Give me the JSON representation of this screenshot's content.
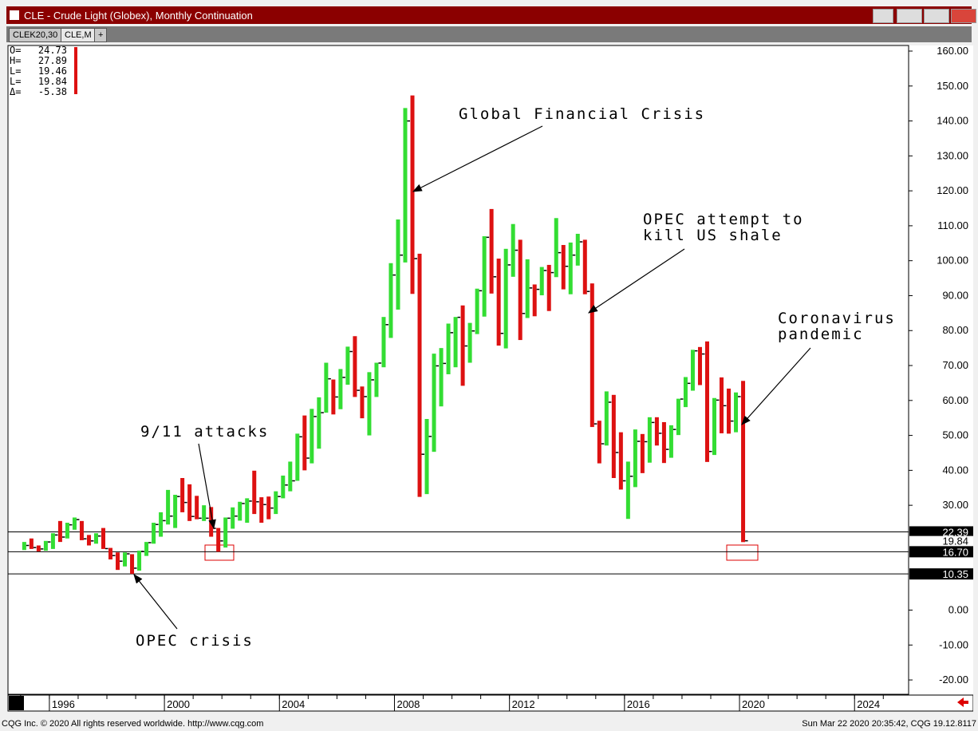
{
  "window": {
    "title": "CLE - Crude Light (Globex), Monthly Continuation",
    "tabs": [
      "CLEK20,30",
      "CLE,M",
      "+"
    ],
    "info": {
      "labels": [
        "O=",
        "H=",
        "L=",
        "L=",
        "Δ="
      ],
      "values": [
        24.73,
        27.89,
        19.46,
        19.84,
        -5.38
      ]
    },
    "footer_left": "CQG Inc. © 2020 All rights reserved worldwide. http://www.cqg.com",
    "footer_right": "Sun Mar 22 2020 20:35:42, CQG 19.12.8117"
  },
  "chart_data": {
    "type": "ohlc",
    "up_color": "#33dd33",
    "down_color": "#dd1111",
    "x": [
      1995,
      1995.25,
      1995.5,
      1995.75,
      1996,
      1996.25,
      1996.5,
      1996.75,
      1997,
      1997.25,
      1997.5,
      1997.75,
      1998,
      1998.25,
      1998.5,
      1998.75,
      1999,
      1999.25,
      1999.5,
      1999.75,
      2000,
      2000.25,
      2000.5,
      2000.75,
      2001,
      2001.25,
      2001.5,
      2001.75,
      2002,
      2002.25,
      2002.5,
      2002.75,
      2003,
      2003.25,
      2003.5,
      2003.75,
      2004,
      2004.25,
      2004.5,
      2004.75,
      2005,
      2005.25,
      2005.5,
      2005.75,
      2006,
      2006.25,
      2006.5,
      2006.75,
      2007,
      2007.25,
      2007.5,
      2007.75,
      2008,
      2008.25,
      2008.5,
      2008.75,
      2009,
      2009.25,
      2009.5,
      2009.75,
      2010,
      2010.25,
      2010.5,
      2010.75,
      2011,
      2011.25,
      2011.5,
      2011.75,
      2012,
      2012.25,
      2012.5,
      2012.75,
      2013,
      2013.25,
      2013.5,
      2013.75,
      2014,
      2014.25,
      2014.5,
      2014.75,
      2015,
      2015.25,
      2015.5,
      2015.75,
      2016,
      2016.25,
      2016.5,
      2016.75,
      2017,
      2017.25,
      2017.5,
      2017.75,
      2018,
      2018.25,
      2018.5,
      2018.75,
      2019,
      2019.25,
      2019.5,
      2019.75,
      2020
    ],
    "high": [
      19.5,
      20.5,
      18.5,
      19.8,
      22,
      25.5,
      25,
      26.5,
      25.5,
      21.5,
      22,
      23.5,
      17.8,
      16.5,
      16.5,
      16,
      17,
      19.5,
      25,
      28,
      34.4,
      33,
      37.8,
      36,
      32.7,
      30,
      29.5,
      23.5,
      26.5,
      29.4,
      31,
      32,
      39.9,
      32.3,
      32.5,
      34,
      38.5,
      42.5,
      50.5,
      55.7,
      57.6,
      60.9,
      70.8,
      66,
      69,
      75.4,
      78.4,
      64,
      68.1,
      70.8,
      83.9,
      99.3,
      111.8,
      143.7,
      147.3,
      102,
      54.7,
      73.4,
      75,
      82,
      83.9,
      87.2,
      82.2,
      92,
      107,
      114.8,
      100.6,
      103.4,
      110.5,
      106,
      100.4,
      93.2,
      98.2,
      98.8,
      112.2,
      104.5,
      105.2,
      107.7,
      106,
      93.5,
      54.2,
      62.6,
      61.6,
      50.9,
      42.5,
      51.7,
      50.4,
      55.2,
      55.2,
      53.8,
      52.9,
      60.5,
      66.7,
      74.5,
      75.3,
      76.9,
      60.7,
      66.6,
      63.4,
      62.3,
      65.6
    ],
    "low": [
      17.2,
      17.5,
      16.8,
      17,
      17.5,
      19.5,
      20.5,
      23,
      20,
      18.5,
      19,
      17.5,
      14.5,
      11.5,
      12.5,
      10.35,
      11.3,
      15.5,
      19,
      21,
      24.5,
      23.5,
      28,
      25.5,
      26,
      25.5,
      21,
      16.7,
      17.9,
      23.3,
      25.6,
      25,
      27.5,
      25,
      26,
      27.5,
      32,
      34,
      37,
      40,
      42,
      46.2,
      56.5,
      56,
      57.5,
      64.5,
      61,
      54.9,
      50,
      61,
      69.5,
      77.9,
      86,
      99.5,
      90.5,
      32.4,
      33.2,
      45.3,
      58.3,
      67.5,
      69.5,
      64.2,
      70.8,
      79,
      84,
      90.6,
      75.7,
      74.9,
      95.4,
      77.3,
      83.6,
      84.1,
      90.1,
      85.6,
      95.3,
      91.8,
      90.4,
      98.6,
      90.4,
      52.4,
      42,
      47.1,
      37.8,
      34.5,
      26.1,
      35.2,
      39.2,
      42.2,
      47.1,
      42.1,
      43.6,
      50.1,
      58.1,
      62.8,
      64.4,
      42.4,
      44.4,
      50.6,
      50.5,
      50.9,
      19.46
    ],
    "close": [
      18.5,
      17.9,
      17.5,
      19.5,
      21.5,
      20.9,
      24.4,
      25.9,
      20.4,
      19.8,
      21.2,
      17.6,
      15.6,
      14,
      16.1,
      12,
      16.8,
      19.3,
      24.5,
      25.6,
      26.9,
      32.5,
      30.8,
      26.8,
      26.3,
      26.3,
      23.4,
      19.8,
      26.3,
      26.9,
      30.5,
      31.2,
      31,
      30.2,
      29.2,
      32.5,
      35.8,
      37,
      49.6,
      43.5,
      55.4,
      56.5,
      66.2,
      61,
      66.6,
      74,
      62.9,
      61.1,
      65.9,
      70.7,
      81.7,
      95.9,
      101.6,
      140,
      100.6,
      44.6,
      49.7,
      69.9,
      70.6,
      79.4,
      83.8,
      75.6,
      79.9,
      91.4,
      106.7,
      95.4,
      79.2,
      98.8,
      103,
      84.9,
      92.2,
      91.8,
      97.2,
      96.6,
      102.3,
      98.4,
      101.6,
      105.4,
      91.2,
      53.3,
      47.6,
      59.5,
      45.1,
      37,
      38.3,
      48.3,
      48.2,
      53.7,
      50.6,
      46,
      51.7,
      60.4,
      64.9,
      74.2,
      73.3,
      45.4,
      60.1,
      58.5,
      54.1,
      61.1,
      19.84
    ],
    "xlim": [
      1994.56,
      2025.88
    ],
    "xticks": [
      1996,
      2000,
      2004,
      2008,
      2012,
      2016,
      2020,
      2024
    ],
    "ylim": [
      -24.1,
      161.6
    ],
    "yticks": [
      {
        "value": 160,
        "label": "160.00"
      },
      {
        "value": 150,
        "label": "150.00"
      },
      {
        "value": 140,
        "label": "140.00"
      },
      {
        "value": 130,
        "label": "130.00"
      },
      {
        "value": 120,
        "label": "120.00"
      },
      {
        "value": 110,
        "label": "110.00"
      },
      {
        "value": 100,
        "label": "100.00"
      },
      {
        "value": 90,
        "label": "90.00"
      },
      {
        "value": 80,
        "label": "80.00"
      },
      {
        "value": 70,
        "label": "70.00"
      },
      {
        "value": 60,
        "label": "60.00"
      },
      {
        "value": 50,
        "label": "50.00"
      },
      {
        "value": 40,
        "label": "40.00"
      },
      {
        "value": 30,
        "label": "30.00"
      },
      {
        "value": 0,
        "label": "0.00"
      },
      {
        "value": -10,
        "label": "-10.00"
      },
      {
        "value": -20,
        "label": "-20.00"
      }
    ],
    "levels": [
      22.39,
      {
        "value": 16.7,
        "label": "16.70"
      },
      10.35
    ],
    "last": 19.84,
    "annotations": [
      [
        "Global Financial Crisis"
      ],
      [
        "OPEC attempt to",
        "kill US shale"
      ],
      [
        "Coronavirus",
        "pandemic"
      ],
      [
        "9/11 attacks"
      ],
      [
        "OPEC crisis"
      ]
    ]
  }
}
